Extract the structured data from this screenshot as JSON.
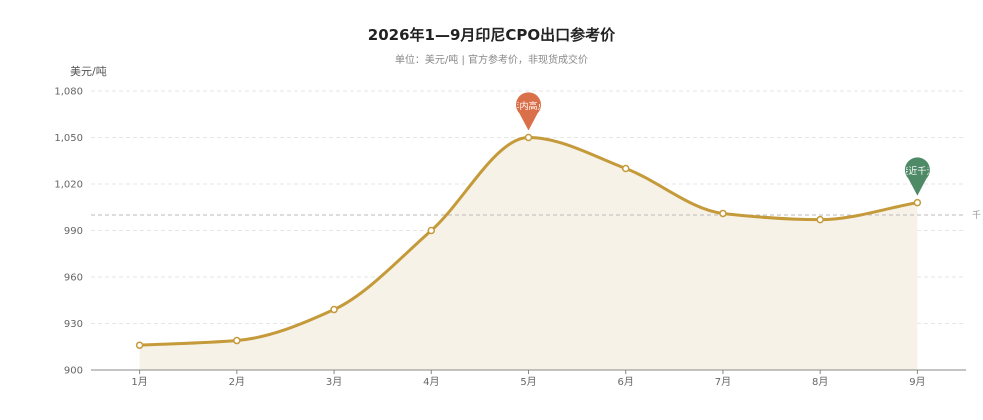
{
  "chart_data": {
    "type": "line",
    "title": "2026年1—9月印尼CPO出口参考价",
    "subtitle": "单位：美元/吨 | 官方参考价，非现货成交价",
    "ylabel": "美元/吨",
    "categories": [
      "1月",
      "2月",
      "3月",
      "4月",
      "5月",
      "6月",
      "7月",
      "8月",
      "9月"
    ],
    "series": [
      {
        "values": [
          916,
          919,
          939,
          990,
          1050,
          1030,
          1001,
          997,
          1008
        ]
      }
    ],
    "ylim": [
      900,
      1080
    ],
    "yticks": [
      900,
      930,
      960,
      990,
      1020,
      1050,
      1080
    ],
    "ytick_labels": [
      "900",
      "930",
      "960",
      "990",
      "1,020",
      "1,050",
      "1,080"
    ],
    "grid": true,
    "reference_line": {
      "value": 1000,
      "label": "千"
    },
    "annotations": [
      {
        "category": "5月",
        "label": "年内高点",
        "color": "#d9704a"
      },
      {
        "category": "9月",
        "label": "接近千元",
        "color": "#4f8a67"
      }
    ],
    "colors": {
      "line": "#c49a3a",
      "area": "#f7f2e7",
      "grid": "#e6e6e6",
      "ref": "#bbbbbb"
    }
  }
}
